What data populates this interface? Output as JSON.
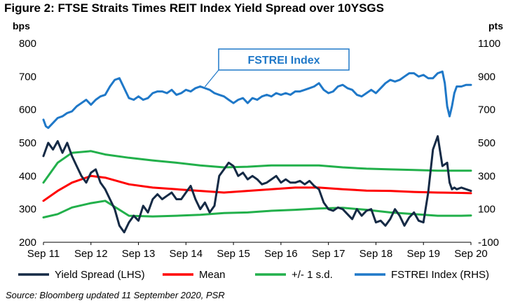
{
  "figure_title": "Figure 2: FTSE Straits Times REIT Index Yield Spread over 10YSGS",
  "source_note": "Source: Bloomberg updated 11 September 2020, PSR",
  "colors": {
    "yield_spread": "#152a45",
    "mean": "#ff0000",
    "sd_band": "#22b04b",
    "fstrei": "#1f78c8",
    "callout_border": "#1f78c8",
    "callout_text": "#1f78c8"
  },
  "chart_data": {
    "type": "line",
    "title": "Figure 2: FTSE Straits Times REIT Index Yield Spread over 10YSGS",
    "left_axis": {
      "unit_label": "bps",
      "ylim": [
        200,
        800
      ],
      "ticks": [
        200,
        300,
        400,
        500,
        600,
        700,
        800
      ]
    },
    "right_axis": {
      "unit_label": "pts",
      "ylim": [
        -100,
        1100
      ],
      "ticks": [
        -100,
        100,
        300,
        500,
        700,
        900,
        1100
      ]
    },
    "x_axis": {
      "range": [
        2011.7,
        2020.7
      ],
      "tick_labels": [
        "Sep 11",
        "Sep 12",
        "Sep 13",
        "Sep 14",
        "Sep 15",
        "Sep 16",
        "Sep 17",
        "Sep 18",
        "Sep 19",
        "Sep 20"
      ],
      "tick_positions": [
        2011.7,
        2012.7,
        2013.7,
        2014.7,
        2015.7,
        2016.7,
        2017.7,
        2018.7,
        2019.7,
        2020.7
      ]
    },
    "grid": false,
    "legend_position": "bottom",
    "annotations": [
      {
        "text": "FSTREI Index",
        "points_to": "FSTREI Index (RHS)",
        "at_x": 2015.1
      }
    ],
    "series": [
      {
        "name": "Yield Spread (LHS)",
        "axis": "left",
        "x": [
          2011.7,
          2011.8,
          2011.9,
          2012.0,
          2012.1,
          2012.2,
          2012.3,
          2012.4,
          2012.5,
          2012.6,
          2012.7,
          2012.8,
          2012.9,
          2013.0,
          2013.1,
          2013.2,
          2013.3,
          2013.4,
          2013.5,
          2013.6,
          2013.7,
          2013.8,
          2013.9,
          2014.0,
          2014.1,
          2014.2,
          2014.3,
          2014.4,
          2014.5,
          2014.6,
          2014.7,
          2014.8,
          2014.9,
          2015.0,
          2015.1,
          2015.2,
          2015.3,
          2015.4,
          2015.5,
          2015.6,
          2015.7,
          2015.8,
          2015.9,
          2016.0,
          2016.1,
          2016.2,
          2016.3,
          2016.4,
          2016.5,
          2016.6,
          2016.7,
          2016.8,
          2016.9,
          2017.0,
          2017.1,
          2017.2,
          2017.3,
          2017.4,
          2017.5,
          2017.6,
          2017.7,
          2017.8,
          2017.9,
          2018.0,
          2018.1,
          2018.2,
          2018.3,
          2018.4,
          2018.5,
          2018.6,
          2018.7,
          2018.8,
          2018.9,
          2019.0,
          2019.1,
          2019.2,
          2019.3,
          2019.4,
          2019.5,
          2019.6,
          2019.7,
          2019.8,
          2019.9,
          2020.0,
          2020.1,
          2020.2,
          2020.25,
          2020.3,
          2020.35,
          2020.4,
          2020.5,
          2020.6,
          2020.7
        ],
        "values": [
          460,
          500,
          480,
          505,
          470,
          500,
          460,
          430,
          400,
          380,
          410,
          420,
          380,
          360,
          330,
          300,
          250,
          230,
          260,
          280,
          265,
          310,
          290,
          330,
          345,
          330,
          340,
          350,
          330,
          330,
          350,
          370,
          330,
          300,
          320,
          290,
          310,
          400,
          420,
          440,
          430,
          400,
          410,
          390,
          400,
          390,
          375,
          380,
          390,
          400,
          380,
          390,
          380,
          380,
          385,
          375,
          385,
          370,
          360,
          320,
          300,
          295,
          305,
          300,
          285,
          270,
          300,
          280,
          295,
          300,
          260,
          265,
          250,
          270,
          300,
          280,
          250,
          275,
          290,
          265,
          260,
          350,
          480,
          520,
          430,
          440,
          380,
          360,
          365,
          360,
          365,
          360,
          355
        ]
      },
      {
        "name": "Mean",
        "axis": "left",
        "x": [
          2011.7,
          2012.0,
          2012.3,
          2012.7,
          2013.0,
          2013.5,
          2014.0,
          2014.5,
          2015.0,
          2015.5,
          2016.0,
          2016.5,
          2017.0,
          2017.5,
          2018.0,
          2018.5,
          2019.0,
          2019.5,
          2020.0,
          2020.5,
          2020.7
        ],
        "values": [
          325,
          355,
          380,
          400,
          395,
          375,
          365,
          360,
          355,
          350,
          355,
          360,
          365,
          365,
          360,
          356,
          355,
          352,
          350,
          349,
          348
        ]
      },
      {
        "name": "+1 s.d.",
        "axis": "left",
        "x": [
          2011.7,
          2012.0,
          2012.3,
          2012.7,
          2013.0,
          2013.5,
          2014.0,
          2014.5,
          2015.0,
          2015.5,
          2016.0,
          2016.5,
          2017.0,
          2017.5,
          2018.0,
          2018.5,
          2019.0,
          2019.5,
          2020.0,
          2020.5,
          2020.7
        ],
        "values": [
          380,
          440,
          470,
          475,
          465,
          455,
          447,
          440,
          432,
          426,
          428,
          432,
          432,
          432,
          426,
          422,
          420,
          418,
          416,
          416,
          416
        ]
      },
      {
        "name": "-1 s.d.",
        "axis": "left",
        "x": [
          2011.7,
          2012.0,
          2012.3,
          2012.7,
          2013.0,
          2013.5,
          2014.0,
          2014.5,
          2015.0,
          2015.5,
          2016.0,
          2016.5,
          2017.0,
          2017.5,
          2018.0,
          2018.5,
          2019.0,
          2019.5,
          2020.0,
          2020.5,
          2020.7
        ],
        "values": [
          275,
          285,
          305,
          318,
          325,
          280,
          278,
          280,
          283,
          288,
          290,
          295,
          298,
          302,
          304,
          298,
          290,
          285,
          280,
          280,
          281
        ]
      },
      {
        "name": "FSTREI Index (RHS)",
        "axis": "right",
        "x": [
          2011.7,
          2011.75,
          2011.8,
          2011.9,
          2012.0,
          2012.1,
          2012.2,
          2012.3,
          2012.4,
          2012.5,
          2012.6,
          2012.7,
          2012.8,
          2012.9,
          2013.0,
          2013.1,
          2013.2,
          2013.3,
          2013.4,
          2013.5,
          2013.6,
          2013.7,
          2013.8,
          2013.9,
          2014.0,
          2014.1,
          2014.2,
          2014.3,
          2014.4,
          2014.5,
          2014.6,
          2014.7,
          2014.8,
          2014.9,
          2015.0,
          2015.1,
          2015.2,
          2015.3,
          2015.4,
          2015.5,
          2015.6,
          2015.7,
          2015.8,
          2015.9,
          2016.0,
          2016.1,
          2016.2,
          2016.3,
          2016.4,
          2016.5,
          2016.6,
          2016.7,
          2016.8,
          2016.9,
          2017.0,
          2017.1,
          2017.2,
          2017.3,
          2017.4,
          2017.5,
          2017.6,
          2017.7,
          2017.8,
          2017.9,
          2018.0,
          2018.1,
          2018.2,
          2018.3,
          2018.4,
          2018.5,
          2018.6,
          2018.7,
          2018.8,
          2018.9,
          2019.0,
          2019.1,
          2019.2,
          2019.3,
          2019.4,
          2019.5,
          2019.6,
          2019.7,
          2019.8,
          2019.9,
          2020.0,
          2020.1,
          2020.15,
          2020.2,
          2020.25,
          2020.3,
          2020.35,
          2020.4,
          2020.5,
          2020.6,
          2020.7
        ],
        "values": [
          640,
          600,
          590,
          620,
          650,
          660,
          680,
          690,
          720,
          740,
          760,
          730,
          760,
          780,
          790,
          840,
          880,
          890,
          830,
          770,
          760,
          780,
          760,
          770,
          800,
          810,
          810,
          800,
          820,
          790,
          800,
          820,
          810,
          830,
          840,
          830,
          820,
          800,
          790,
          780,
          760,
          740,
          760,
          770,
          740,
          770,
          760,
          780,
          790,
          780,
          800,
          790,
          800,
          790,
          810,
          810,
          820,
          830,
          840,
          860,
          820,
          800,
          810,
          840,
          850,
          830,
          820,
          790,
          780,
          800,
          820,
          800,
          830,
          860,
          880,
          870,
          880,
          900,
          920,
          920,
          900,
          910,
          890,
          890,
          920,
          930,
          860,
          720,
          660,
          720,
          800,
          840,
          840,
          850,
          850
        ]
      }
    ],
    "legend": [
      "Yield Spread (LHS)",
      "Mean",
      "+/- 1 s.d.",
      "FSTREI Index (RHS)"
    ]
  }
}
